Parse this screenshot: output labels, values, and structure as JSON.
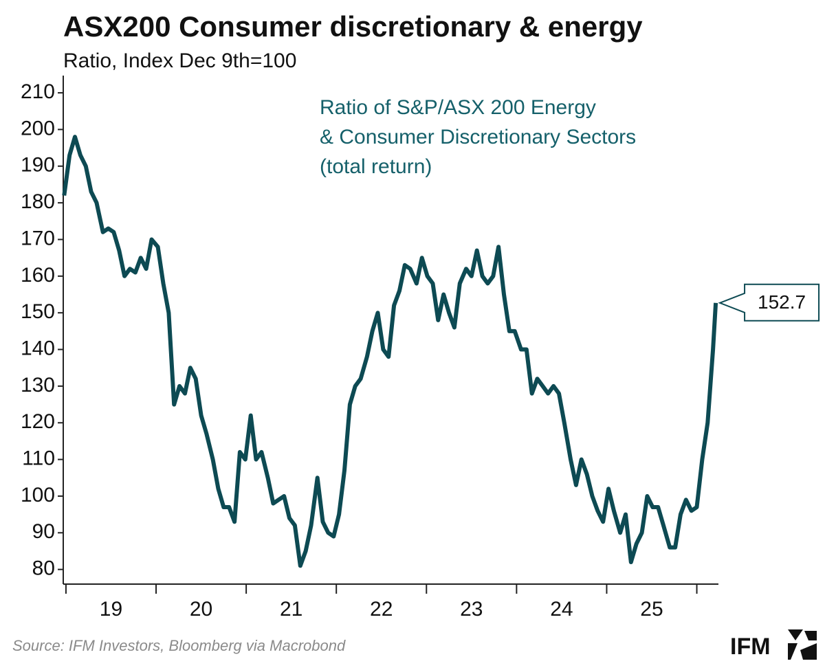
{
  "chart_data": {
    "type": "line",
    "title": "ASX200 Consumer discretionary & energy",
    "subtitle": "Ratio, Index Dec 9th=100",
    "annotation": [
      "Ratio of S&P/ASX 200 Energy",
      "& Consumer Discretionary Sectors",
      "(total return)"
    ],
    "source": "Source: IFM Investors, Bloomberg via Macrobond",
    "logo": "IFM",
    "color": "#0d4a53",
    "x": [
      18.98,
      19.04,
      19.1,
      19.16,
      19.22,
      19.28,
      19.34,
      19.41,
      19.47,
      19.53,
      19.59,
      19.65,
      19.71,
      19.77,
      19.83,
      19.89,
      19.95,
      20.02,
      20.08,
      20.14,
      20.2,
      20.26,
      20.32,
      20.38,
      20.44,
      20.5,
      20.56,
      20.63,
      20.69,
      20.75,
      20.81,
      20.87,
      20.93,
      20.99,
      21.05,
      21.11,
      21.17,
      21.24,
      21.3,
      21.36,
      21.42,
      21.48,
      21.54,
      21.6,
      21.66,
      21.72,
      21.79,
      21.85,
      21.91,
      21.97,
      22.03,
      22.09,
      22.15,
      22.21,
      22.27,
      22.34,
      22.4,
      22.46,
      22.52,
      22.58,
      22.64,
      22.7,
      22.76,
      22.82,
      22.89,
      22.95,
      23.01,
      23.07,
      23.13,
      23.19,
      23.25,
      23.31,
      23.37,
      23.44,
      23.5,
      23.56,
      23.62,
      23.68,
      23.74,
      23.8,
      23.86,
      23.92,
      23.98,
      24.05,
      24.11,
      24.17,
      24.23,
      24.29,
      24.35,
      24.41,
      24.47,
      24.53,
      24.6,
      24.66,
      24.72,
      24.78,
      24.84,
      24.9,
      24.96,
      25.02,
      25.08,
      25.15,
      25.21,
      25.27,
      25.33,
      25.39,
      25.45,
      25.51,
      25.57,
      25.63,
      25.7,
      25.76,
      25.82,
      25.88,
      25.94,
      26.0,
      26.06,
      26.12,
      26.18,
      26.21
    ],
    "values": [
      182,
      193,
      198,
      193,
      190,
      183,
      180,
      172,
      173,
      172,
      167,
      160,
      162,
      161,
      165,
      162,
      170,
      168,
      158,
      150,
      125,
      130,
      128,
      135,
      132,
      122,
      117,
      110,
      102,
      97,
      97,
      93,
      112,
      110,
      122,
      110,
      112,
      105,
      98,
      99,
      100,
      94,
      92,
      81,
      85,
      92,
      105,
      93,
      90,
      89,
      95,
      107,
      125,
      130,
      132,
      138,
      145,
      150,
      140,
      138,
      152,
      156,
      163,
      162,
      158,
      165,
      160,
      158,
      148,
      155,
      150,
      146,
      158,
      162,
      160,
      167,
      160,
      158,
      160,
      168,
      155,
      145,
      145,
      140,
      140,
      128,
      132,
      130,
      128,
      130,
      128,
      120,
      110,
      103,
      110,
      106,
      100,
      96,
      93,
      102,
      96,
      90,
      95,
      82,
      87,
      90,
      100,
      97,
      97,
      92,
      86,
      86,
      95,
      99,
      96,
      97,
      110,
      120,
      140,
      152.7
    ],
    "xlim": [
      18.97,
      26.24
    ],
    "xtick_marks": [
      19,
      20,
      21,
      22,
      23,
      24,
      25,
      26
    ],
    "xticks": [
      {
        "value": 19.5,
        "label": "19"
      },
      {
        "value": 20.5,
        "label": "20"
      },
      {
        "value": 21.5,
        "label": "21"
      },
      {
        "value": 22.5,
        "label": "22"
      },
      {
        "value": 23.5,
        "label": "23"
      },
      {
        "value": 24.5,
        "label": "24"
      },
      {
        "value": 25.5,
        "label": "25"
      }
    ],
    "ylim": [
      76,
      214.7
    ],
    "yticks": [
      80,
      90,
      100,
      110,
      120,
      130,
      140,
      150,
      160,
      170,
      180,
      190,
      200,
      210
    ],
    "grid": false
  }
}
